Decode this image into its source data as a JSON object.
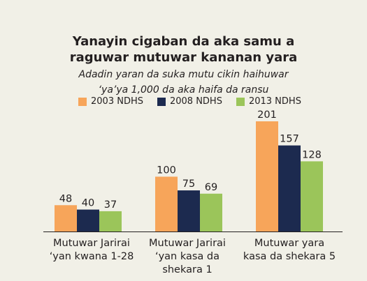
{
  "chart_data": {
    "type": "bar",
    "title": [
      "Yanayin cigaban da aka samu a",
      "raguwar mutuwar kananan yara"
    ],
    "subtitle": [
      "Adadin yaran  da suka mutu cikin haihuwar",
      "‘ya’ya 1,000 da aka haifa da ransu"
    ],
    "categories": [
      [
        "Mutuwar Jarirai",
        "‘yan kwana 1-28"
      ],
      [
        "Mutuwar Jarirai",
        "‘yan kasa da",
        "shekara 1"
      ],
      [
        "Mutuwar yara",
        "kasa da shekara 5"
      ]
    ],
    "series": [
      {
        "name": "2003 NDHS",
        "color": "#f7a55a",
        "values": [
          48,
          100,
          201
        ]
      },
      {
        "name": "2008 NDHS",
        "color": "#1c2a4f",
        "values": [
          40,
          75,
          157
        ]
      },
      {
        "name": "2013 NDHS",
        "color": "#9bc55a",
        "values": [
          37,
          69,
          128
        ]
      }
    ],
    "ylim": [
      0,
      201
    ],
    "grid": false,
    "legend_position": "top"
  }
}
